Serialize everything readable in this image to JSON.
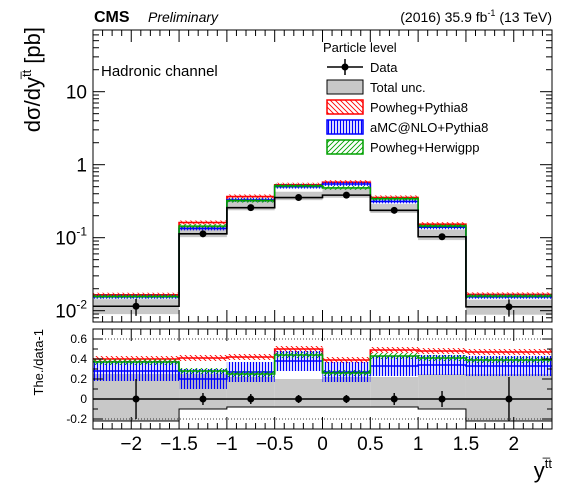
{
  "header": {
    "experiment": "CMS",
    "status": "Preliminary",
    "lumi_prefix": "(2016) 35.9 fb",
    "lumi_exp": "-1",
    "lumi_suffix": " (13 TeV)"
  },
  "upper_panel": {
    "ylabel_main": "dσ/dy",
    "ylabel_sup": "t̅t",
    "ylabel_unit": " [pb]",
    "channel_label": "Hadronic channel",
    "yticks": [
      {
        "base": "10",
        "exp": "-2",
        "value": 0.01
      },
      {
        "base": "10",
        "exp": "-1",
        "value": 0.1
      },
      {
        "base": "1",
        "exp": "",
        "value": 1
      },
      {
        "base": "10",
        "exp": "",
        "value": 10
      }
    ]
  },
  "legend": {
    "title": "Particle level",
    "placement": "top-right",
    "entries": [
      {
        "key": "data",
        "label": "Data"
      },
      {
        "key": "total_unc",
        "label": "Total unc."
      },
      {
        "key": "powheg_pythia8",
        "label": "Powheg+Pythia8"
      },
      {
        "key": "amcatnlo_pythia8",
        "label": "aMC@NLO+Pythia8"
      },
      {
        "key": "powheg_herwigpp",
        "label": "Powheg+Herwigpp"
      }
    ]
  },
  "lower_panel": {
    "ylabel": "The./data-1",
    "yticks": [
      "-0.2",
      "0",
      "0.2",
      "0.4",
      "0.6"
    ],
    "ytick_values": [
      -0.2,
      0,
      0.2,
      0.4,
      0.6
    ]
  },
  "xaxis": {
    "label_main": "y",
    "label_sup": "t̅t",
    "tick_labels": [
      "−2",
      "−1.5",
      "−1",
      "−0.5",
      "0",
      "0.5",
      "1",
      "1.5",
      "2"
    ],
    "tick_values": [
      -2,
      -1.5,
      -1,
      -0.5,
      0,
      0.5,
      1,
      1.5,
      2
    ]
  },
  "colors": {
    "data": "#000000",
    "total_unc": "#c8c8c8",
    "powheg_pythia8": "#ff0000",
    "amcatnlo_pythia8": "#0000ff",
    "powheg_herwigpp": "#00a000"
  },
  "chart_data": {
    "type": "histogram",
    "xlim": [
      -2.4,
      2.4
    ],
    "upper_ylim": [
      0.007,
      70
    ],
    "upper_yscale": "log",
    "lower_ylim": [
      -0.3,
      0.7
    ],
    "bin_edges": [
      -2.4,
      -1.5,
      -1.0,
      -0.5,
      0.0,
      0.5,
      1.0,
      1.5,
      2.4
    ],
    "data": {
      "x": [
        -1.95,
        -1.25,
        -0.75,
        -0.25,
        0.25,
        0.75,
        1.25,
        1.95
      ],
      "y": [
        0.0115,
        0.113,
        0.258,
        0.355,
        0.383,
        0.237,
        0.103,
        0.0113
      ],
      "yerr": [
        0.003,
        0.006,
        0.013,
        0.016,
        0.016,
        0.013,
        0.006,
        0.003
      ]
    },
    "total_unc": {
      "y": [
        0.0115,
        0.113,
        0.258,
        0.355,
        0.383,
        0.237,
        0.103,
        0.0113
      ],
      "rel_down": [
        0.22,
        0.1,
        0.08,
        0.08,
        0.08,
        0.08,
        0.1,
        0.22
      ],
      "rel_up": [
        0.25,
        0.25,
        0.22,
        0.2,
        0.22,
        0.22,
        0.25,
        0.25
      ]
    },
    "series": [
      {
        "name": "Powheg+Pythia8",
        "values": [
          0.0165,
          0.161,
          0.366,
          0.53,
          0.575,
          0.355,
          0.153,
          0.0167
        ]
      },
      {
        "name": "aMC@NLO+Pythia8",
        "values": [
          0.0155,
          0.134,
          0.329,
          0.5,
          0.544,
          0.314,
          0.139,
          0.0155
        ]
      },
      {
        "name": "Powheg+Herwigpp",
        "values": [
          0.0157,
          0.144,
          0.321,
          0.514,
          0.48,
          0.341,
          0.145,
          0.0159
        ]
      }
    ],
    "ratio": {
      "data_yerr": [
        0.2,
        0.06,
        0.05,
        0.04,
        0.04,
        0.06,
        0.08,
        0.22
      ],
      "total_unc_down": [
        -0.22,
        -0.1,
        -0.08,
        -0.08,
        -0.08,
        -0.08,
        -0.1,
        -0.22
      ],
      "total_unc_up": [
        0.25,
        0.25,
        0.22,
        0.2,
        0.22,
        0.22,
        0.25,
        0.25
      ],
      "series": [
        {
          "name": "Powheg+Pythia8",
          "values": [
            0.4,
            0.41,
            0.42,
            0.5,
            0.39,
            0.49,
            0.48,
            0.47
          ],
          "band": 0.03
        },
        {
          "name": "aMC@NLO+Pythia8",
          "values": [
            0.28,
            0.2,
            0.27,
            0.38,
            0.27,
            0.33,
            0.34,
            0.33
          ],
          "band": 0.1
        },
        {
          "name": "Powheg+Herwigpp",
          "values": [
            0.37,
            0.28,
            0.25,
            0.44,
            0.26,
            0.43,
            0.41,
            0.39
          ],
          "band": 0.03
        }
      ]
    }
  }
}
